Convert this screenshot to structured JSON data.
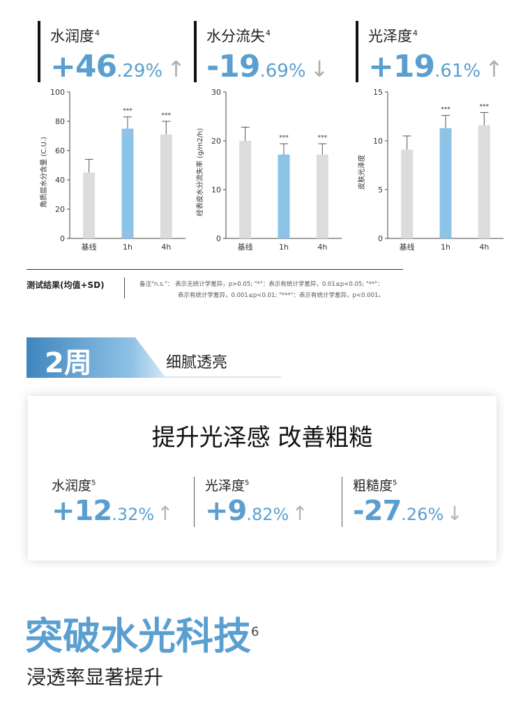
{
  "panels": [
    {
      "label": "水润度",
      "sup": "4",
      "sign": "+",
      "int": "46",
      "frac": ".29%",
      "arrow": "↑",
      "ylabel": "角质层水分含量 (C.U.)"
    },
    {
      "label": "水分流失",
      "sup": "4",
      "sign": "-",
      "int": "19",
      "frac": ".69%",
      "arrow": "↓",
      "ylabel": "经表皮水分流失率 (g/m2/h)"
    },
    {
      "label": "光泽度",
      "sup": "4",
      "sign": "+",
      "int": "19",
      "frac": ".61%",
      "arrow": "↑",
      "ylabel": "皮肤光泽度"
    }
  ],
  "chart_data": [
    {
      "type": "bar",
      "categories": [
        "基线",
        "1h",
        "4h"
      ],
      "values": [
        45,
        75,
        71
      ],
      "errors": [
        9,
        8,
        9
      ],
      "significance": [
        "",
        "***",
        "***"
      ],
      "ylim": [
        0,
        100
      ],
      "yticks": [
        0,
        20,
        40,
        60,
        80,
        100
      ],
      "ylabel": "角质层水分含量 (C.U.)",
      "highlight_index": 1
    },
    {
      "type": "bar",
      "categories": [
        "基线",
        "1h",
        "4h"
      ],
      "values": [
        20,
        17.2,
        17.2
      ],
      "errors": [
        2.8,
        2.2,
        2.2
      ],
      "significance": [
        "",
        "***",
        "***"
      ],
      "ylim": [
        0,
        30
      ],
      "yticks": [
        0,
        10,
        20,
        30
      ],
      "ylabel": "经表皮水分流失率 (g/m2/h)",
      "highlight_index": 1
    },
    {
      "type": "bar",
      "categories": [
        "基线",
        "1h",
        "4h"
      ],
      "values": [
        9.1,
        11.3,
        11.6
      ],
      "errors": [
        1.4,
        1.3,
        1.3
      ],
      "significance": [
        "",
        "***",
        "***"
      ],
      "ylim": [
        0,
        15
      ],
      "yticks": [
        0,
        5,
        10,
        15
      ],
      "ylabel": "皮肤光泽度",
      "highlight_index": 1
    }
  ],
  "results": {
    "label": "测试结果(均值+SD)",
    "note_line1": "备注\"n.s.\"： 表示无统计学差异，p>0.05; \"*\"：表示有统计学差异，0.01≤p<0.05; \"**\"：",
    "note_line2": "表示有统计学差异，0.001≤p<0.01; \"***\"：表示有统计学差异，p<0.001。"
  },
  "banner": {
    "week": "2周",
    "subtitle": "细腻透亮"
  },
  "card": {
    "headline": "提升光泽感 改善粗糙",
    "stats": [
      {
        "label": "水润度",
        "sup": "5",
        "sign": "+",
        "int": "12",
        "frac": ".32%",
        "arrow": "↑"
      },
      {
        "label": "光泽度",
        "sup": "5",
        "sign": "+",
        "int": "9",
        "frac": ".82%",
        "arrow": "↑"
      },
      {
        "label": "粗糙度",
        "sup": "5",
        "sign": "-",
        "int": "27",
        "frac": ".26%",
        "arrow": "↓"
      }
    ]
  },
  "tech": {
    "title": "突破水光科技",
    "sup": "6",
    "subtitle": "浸透率显著提升"
  },
  "colors": {
    "accent": "#5a9fd0",
    "bar_gray": "#dcdcdc",
    "bar_blue": "#8cc4e8"
  }
}
